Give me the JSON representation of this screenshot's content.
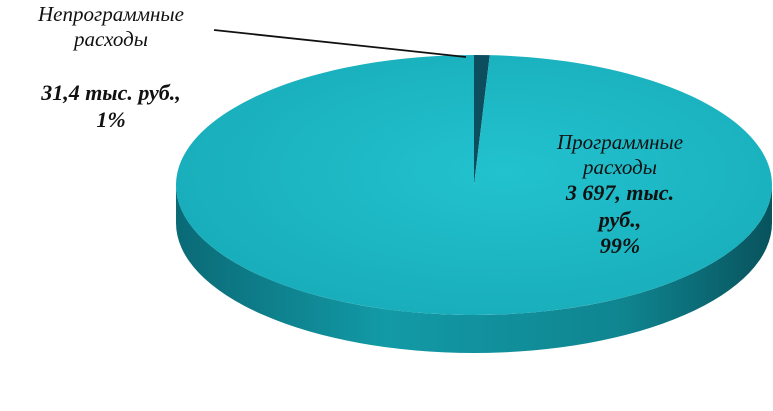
{
  "chart_data": {
    "type": "pie",
    "style": "3d",
    "slices": [
      {
        "name_lines": [
          "Непрограммные",
          "расходы"
        ],
        "value_lines": [
          "31,4 тыс. руб.,"
        ],
        "value": 31.4,
        "percent": 1,
        "percent_label": "1%",
        "color": "#0d4e5e"
      },
      {
        "name_lines": [
          "Программные",
          "расходы"
        ],
        "value_lines": [
          "3 697, тыс.",
          "руб.,"
        ],
        "value": 3697,
        "percent": 99,
        "percent_label": "99%",
        "color": "#1cb5c2"
      }
    ]
  }
}
